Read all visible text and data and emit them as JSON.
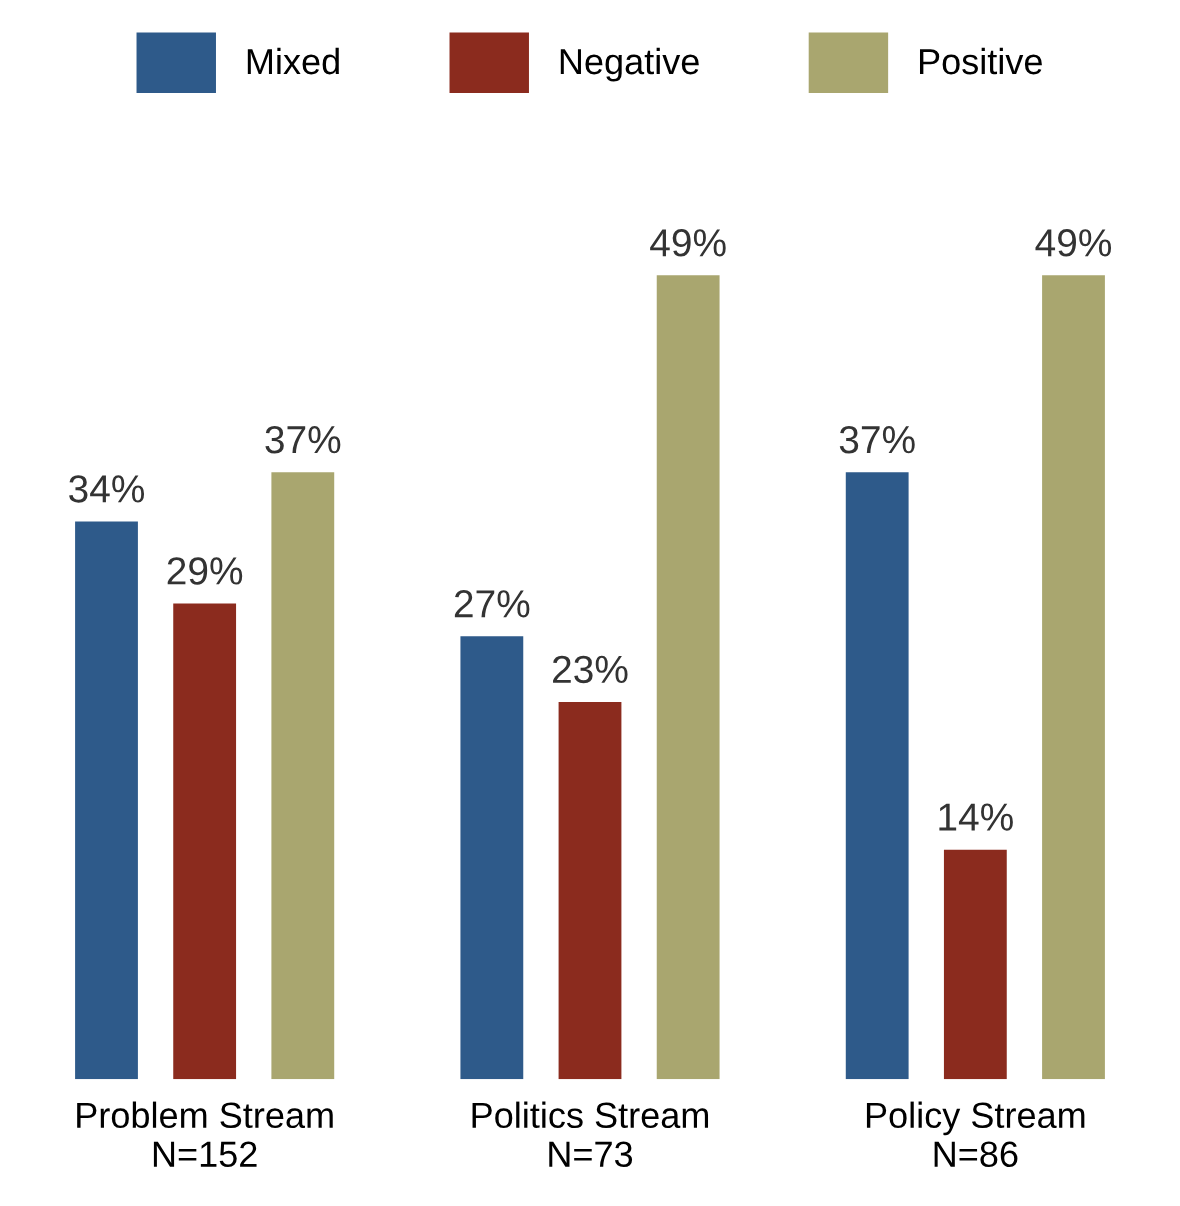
{
  "chart_data": {
    "type": "bar",
    "categories": [
      "Problem Stream\nN=152",
      "Politics Stream\nN=73",
      "Policy Stream\nN=86"
    ],
    "series": [
      {
        "name": "Mixed",
        "color": "#2e5a8a",
        "values": [
          34,
          27,
          37
        ],
        "value_labels": [
          "34%",
          "27%",
          "37%"
        ]
      },
      {
        "name": "Negative",
        "color": "#8b2b1e",
        "values": [
          29,
          23,
          14
        ],
        "value_labels": [
          "29%",
          "23%",
          "14%"
        ]
      },
      {
        "name": "Positive",
        "color": "#a9a66f",
        "values": [
          37,
          49,
          49
        ],
        "value_labels": [
          "37%",
          "49%",
          "49%"
        ]
      }
    ],
    "legend": "top",
    "grid": false
  }
}
